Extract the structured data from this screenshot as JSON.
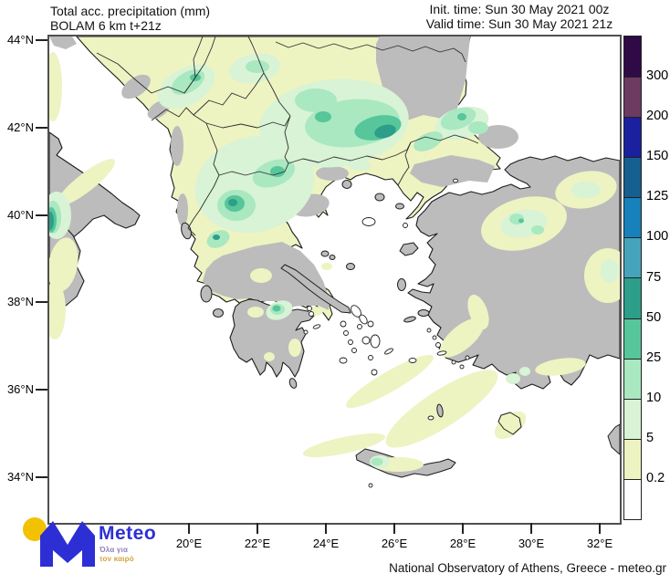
{
  "header": {
    "title_line1": "Total acc. precipitation (mm)",
    "title_line2": "BOLAM 6 km t+21z",
    "init_time": "Init. time: Sun 30 May 2021 00z",
    "valid_time": "Valid time: Sun 30 May 2021 21z"
  },
  "map": {
    "lat_tick_labels": [
      "44°N",
      "42°N",
      "40°N",
      "38°N",
      "36°N",
      "34°N"
    ],
    "lon_tick_labels": [
      "20°E",
      "22°E",
      "24°E",
      "26°E",
      "28°E",
      "30°E",
      "32°E"
    ]
  },
  "colorbar": {
    "tick_labels": [
      "300",
      "200",
      "150",
      "125",
      "100",
      "75",
      "50",
      "25",
      "10",
      "5",
      "0.2"
    ],
    "segment_colors_top_to_bottom": [
      "#2f0a46",
      "#6d3a62",
      "#1b209e",
      "#15608f",
      "#1781bb",
      "#45a3bb",
      "#2d9e89",
      "#57c69a",
      "#a9e8c0",
      "#d8f3d5",
      "#eef3c2",
      "#ffffff"
    ]
  },
  "palette": {
    "sea": "#ffffff",
    "land_no_precip": "#bcbcbc",
    "precip_0_2_to_5": "#eef3c2",
    "precip_5_to_10": "#d8f3d5",
    "precip_10_to_25": "#a9e8c0",
    "precip_25_to_50": "#57c69a",
    "precip_50_to_75": "#2d9e89",
    "coastline": "#1c1c1c"
  },
  "logo": {
    "brand": "Meteo",
    "tagline_line1": "Όλα για",
    "tagline_line2": "τον καιρό",
    "brand_color": "#2d2fd5",
    "sun_color": "#f2c200",
    "tagline1_color": "#8d7fc0",
    "tagline2_color": "#d2a23c"
  },
  "footer": {
    "attribution": "National Observatory of Athens, Greece - meteo.gr"
  }
}
